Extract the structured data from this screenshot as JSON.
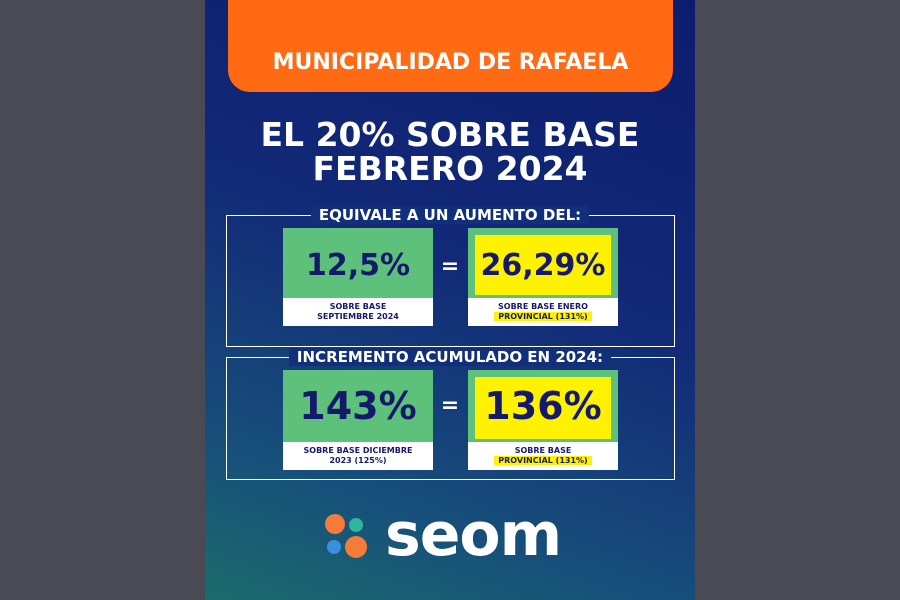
{
  "header": {
    "title": "MUNICIPALIDAD DE RAFAELA"
  },
  "headline": [
    "EL 20% SOBRE BASE",
    "FEBRERO 2024"
  ],
  "sections": [
    {
      "heading": "EQUIVALE A UN AUMENTO DEL:",
      "left": {
        "value": "12,5%",
        "caption": [
          "SOBRE BASE",
          "SEPTIEMBRE 2024"
        ]
      },
      "operator": "=",
      "right": {
        "value": "26,29%",
        "caption": [
          "SOBRE BASE ENERO",
          "PROVINCIAL (131%)"
        ]
      }
    },
    {
      "heading": "INCREMENTO ACUMULADO EN 2024:",
      "left": {
        "value": "143%",
        "caption": [
          "SOBRE BASE DICIEMBRE",
          "2023 (125%)"
        ]
      },
      "operator": "=",
      "right": {
        "value": "136%",
        "caption": [
          "SOBRE BASE",
          "PROVINCIAL (131%)"
        ]
      }
    }
  ],
  "logo": {
    "text": "seom"
  }
}
